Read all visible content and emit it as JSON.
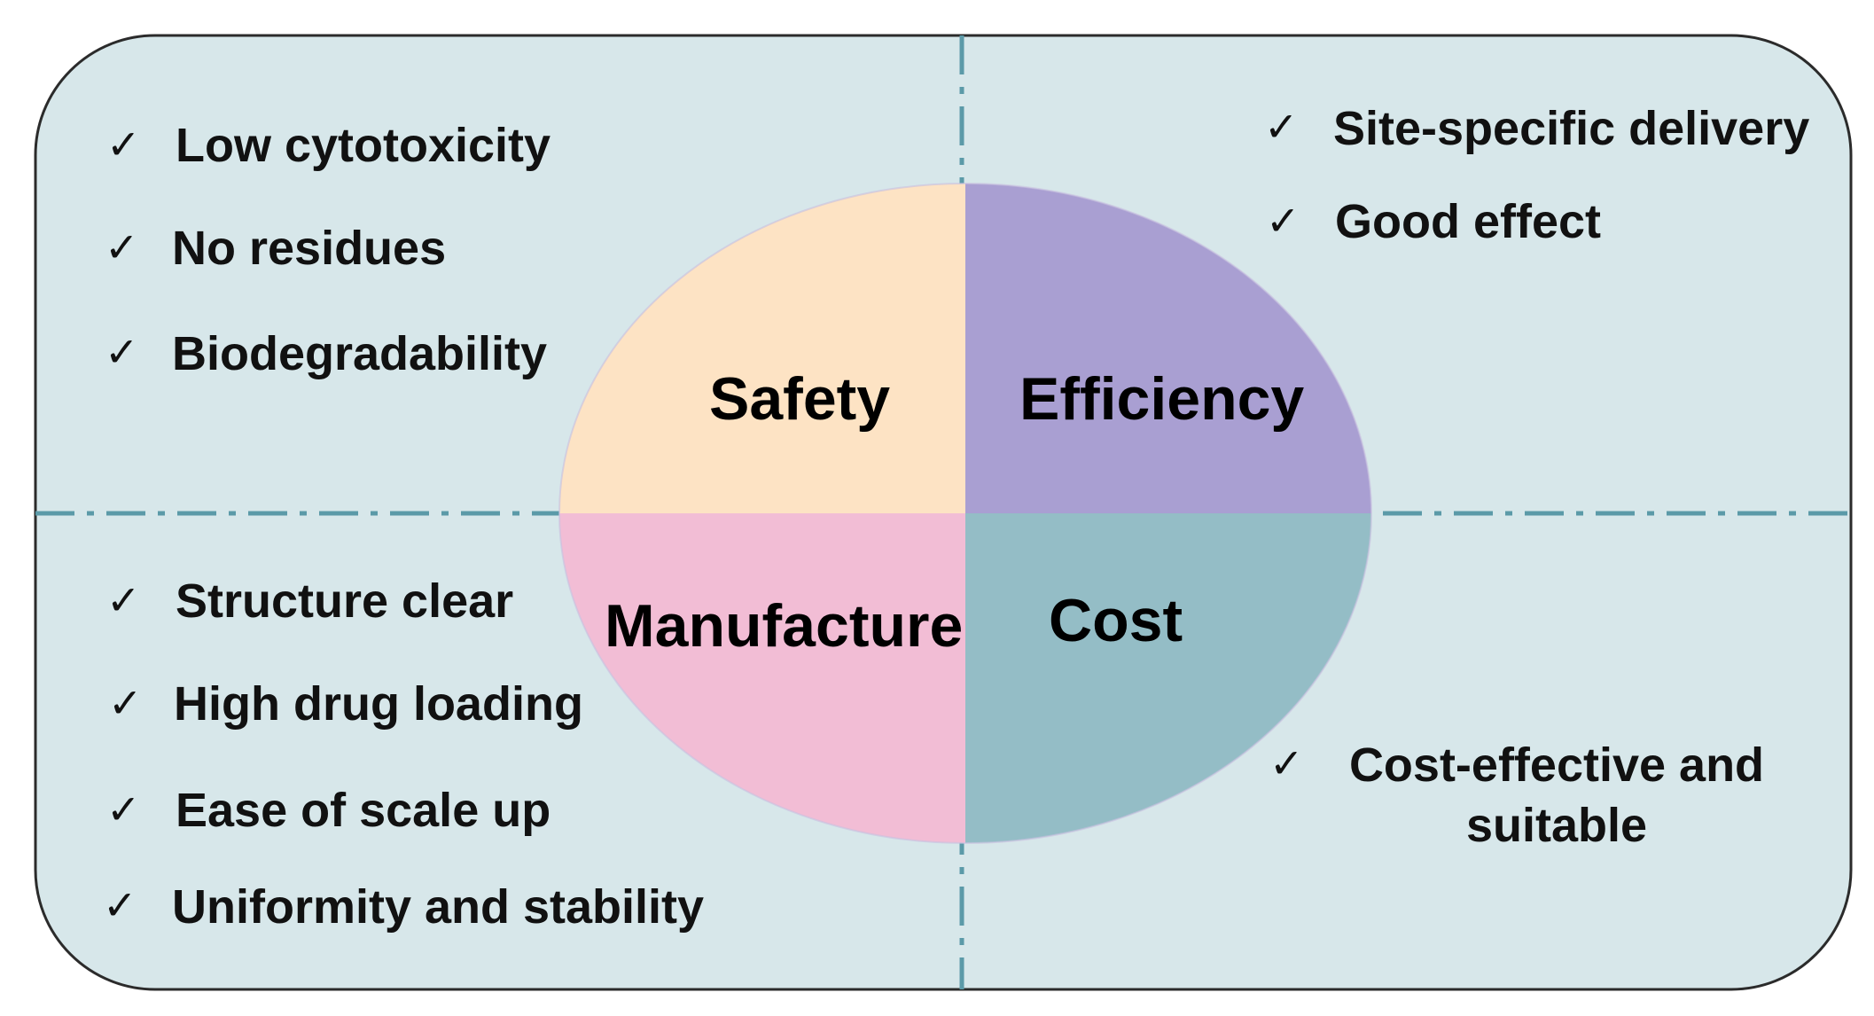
{
  "colors": {
    "panel_fill": "#d7e7ea",
    "panel_border": "#2b2b2b",
    "divider": "#5b9aa8",
    "safety": "#fde3c4",
    "efficiency": "#a99fd2",
    "manufacture": "#f2bdd5",
    "cost": "#94bdc6"
  },
  "check_icon": "checkmark-icon",
  "quadrants": {
    "safety": {
      "label": "Safety",
      "items": [
        "Low cytotoxicity",
        "No residues",
        "Biodegradability"
      ]
    },
    "efficiency": {
      "label": "Efficiency",
      "items": [
        "Site-specific delivery",
        "Good effect"
      ]
    },
    "manufacture": {
      "label": "Manufacture",
      "items": [
        "Structure clear",
        "High drug loading",
        "Ease of scale up",
        "Uniformity and stability"
      ]
    },
    "cost": {
      "label": "Cost",
      "items_line1": "Cost-effective and",
      "items_line2": "suitable"
    }
  }
}
